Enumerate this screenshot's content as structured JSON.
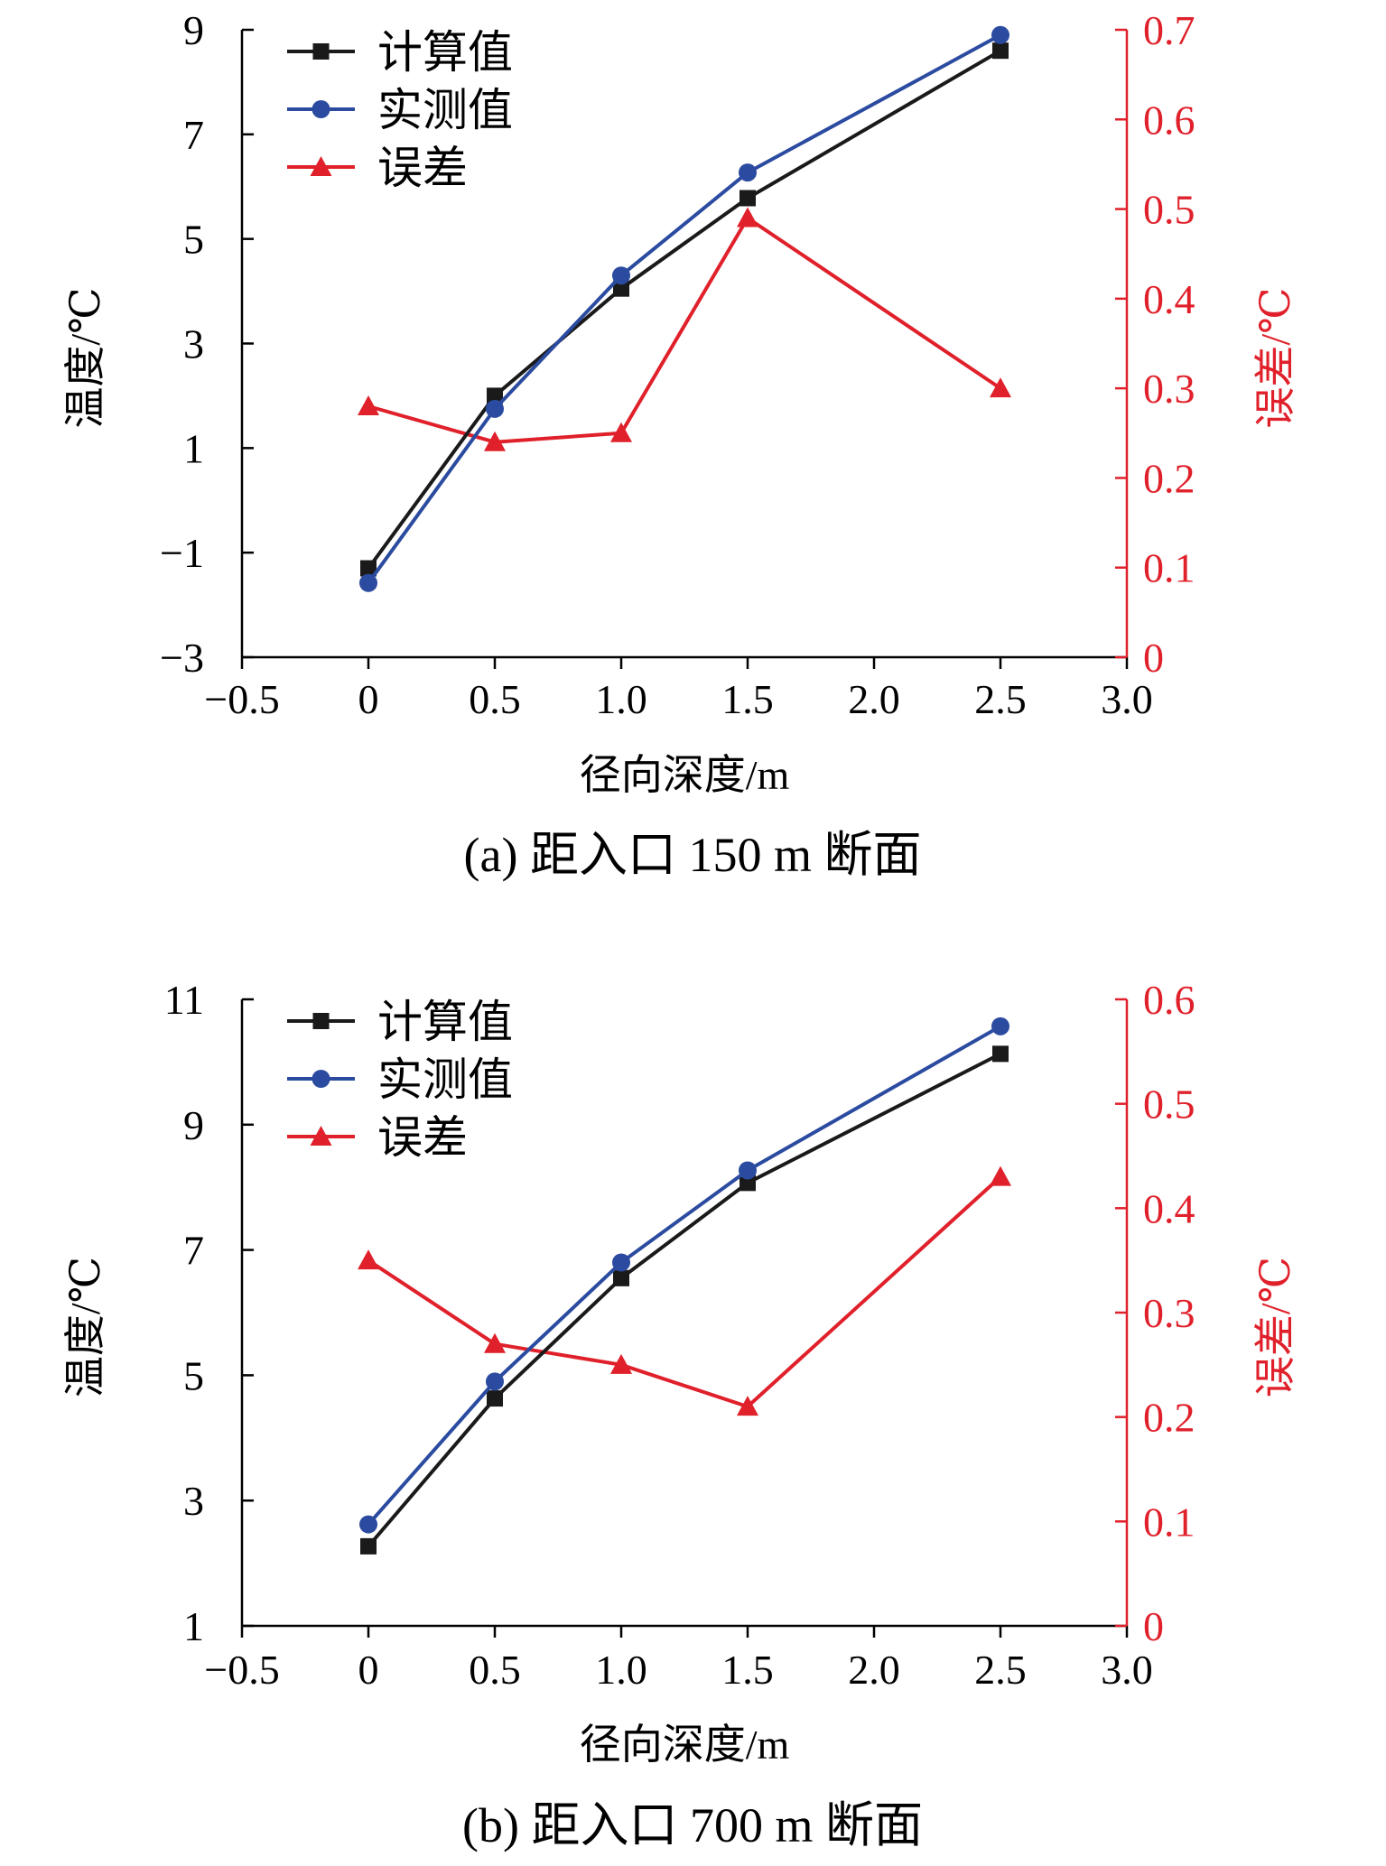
{
  "chart_data": [
    {
      "type": "line",
      "caption": "(a) 距入口 150 m 断面",
      "xlabel": "径向深度/m",
      "ylabel": "温度/℃",
      "y2label": "误差/℃",
      "xlim": [
        -0.5,
        3.0
      ],
      "ylim": [
        -3,
        9
      ],
      "y2lim": [
        0,
        0.7
      ],
      "xticks": [
        -0.5,
        0,
        0.5,
        1.0,
        1.5,
        2.0,
        2.5,
        3.0
      ],
      "xtick_labels": [
        "−0.5",
        "0",
        "0.5",
        "1.0",
        "1.5",
        "2.0",
        "2.5",
        "3.0"
      ],
      "yticks": [
        -3,
        -1,
        1,
        3,
        5,
        7,
        9
      ],
      "ytick_labels": [
        "−3",
        "−1",
        "1",
        "3",
        "5",
        "7",
        "9"
      ],
      "y2ticks": [
        0,
        0.1,
        0.2,
        0.3,
        0.4,
        0.5,
        0.6,
        0.7
      ],
      "y2tick_labels": [
        "0",
        "0.1",
        "0.2",
        "0.3",
        "0.4",
        "0.5",
        "0.6",
        "0.7"
      ],
      "legend_position": "top-left",
      "grid": false,
      "x": [
        0,
        0.5,
        1.0,
        1.5,
        2.5
      ],
      "series": [
        {
          "name": "计算值",
          "axis": "left",
          "marker": "square",
          "color": "#1a1a1a",
          "values": [
            -1.3,
            2.0,
            4.05,
            5.78,
            8.6
          ]
        },
        {
          "name": "实测值",
          "axis": "left",
          "marker": "circle",
          "color": "#2b4ba0",
          "values": [
            -1.58,
            1.75,
            4.3,
            6.27,
            8.9
          ]
        },
        {
          "name": "误差",
          "axis": "right",
          "marker": "triangle",
          "color": "#e0202a",
          "values": [
            0.28,
            0.24,
            0.25,
            0.49,
            0.3
          ]
        }
      ]
    },
    {
      "type": "line",
      "caption": "(b) 距入口 700 m 断面",
      "xlabel": "径向深度/m",
      "ylabel": "温度/℃",
      "y2label": "误差/℃",
      "xlim": [
        -0.5,
        3.0
      ],
      "ylim": [
        1,
        11
      ],
      "y2lim": [
        0,
        0.6
      ],
      "xticks": [
        -0.5,
        0,
        0.5,
        1.0,
        1.5,
        2.0,
        2.5,
        3.0
      ],
      "xtick_labels": [
        "−0.5",
        "0",
        "0.5",
        "1.0",
        "1.5",
        "2.0",
        "2.5",
        "3.0"
      ],
      "yticks": [
        1,
        3,
        5,
        7,
        9,
        11
      ],
      "ytick_labels": [
        "1",
        "3",
        "5",
        "7",
        "9",
        "11"
      ],
      "y2ticks": [
        0,
        0.1,
        0.2,
        0.3,
        0.4,
        0.5,
        0.6
      ],
      "y2tick_labels": [
        "0",
        "0.1",
        "0.2",
        "0.3",
        "0.4",
        "0.5",
        "0.6"
      ],
      "legend_position": "top-left",
      "grid": false,
      "x": [
        0,
        0.5,
        1.0,
        1.5,
        2.5
      ],
      "series": [
        {
          "name": "计算值",
          "axis": "left",
          "marker": "square",
          "color": "#1a1a1a",
          "values": [
            2.27,
            4.63,
            6.55,
            8.07,
            10.13
          ]
        },
        {
          "name": "实测值",
          "axis": "left",
          "marker": "circle",
          "color": "#2b4ba0",
          "values": [
            2.62,
            4.9,
            6.8,
            8.27,
            10.57
          ]
        },
        {
          "name": "误差",
          "axis": "right",
          "marker": "triangle",
          "color": "#e0202a",
          "values": [
            0.35,
            0.27,
            0.25,
            0.21,
            0.43
          ]
        }
      ]
    }
  ]
}
